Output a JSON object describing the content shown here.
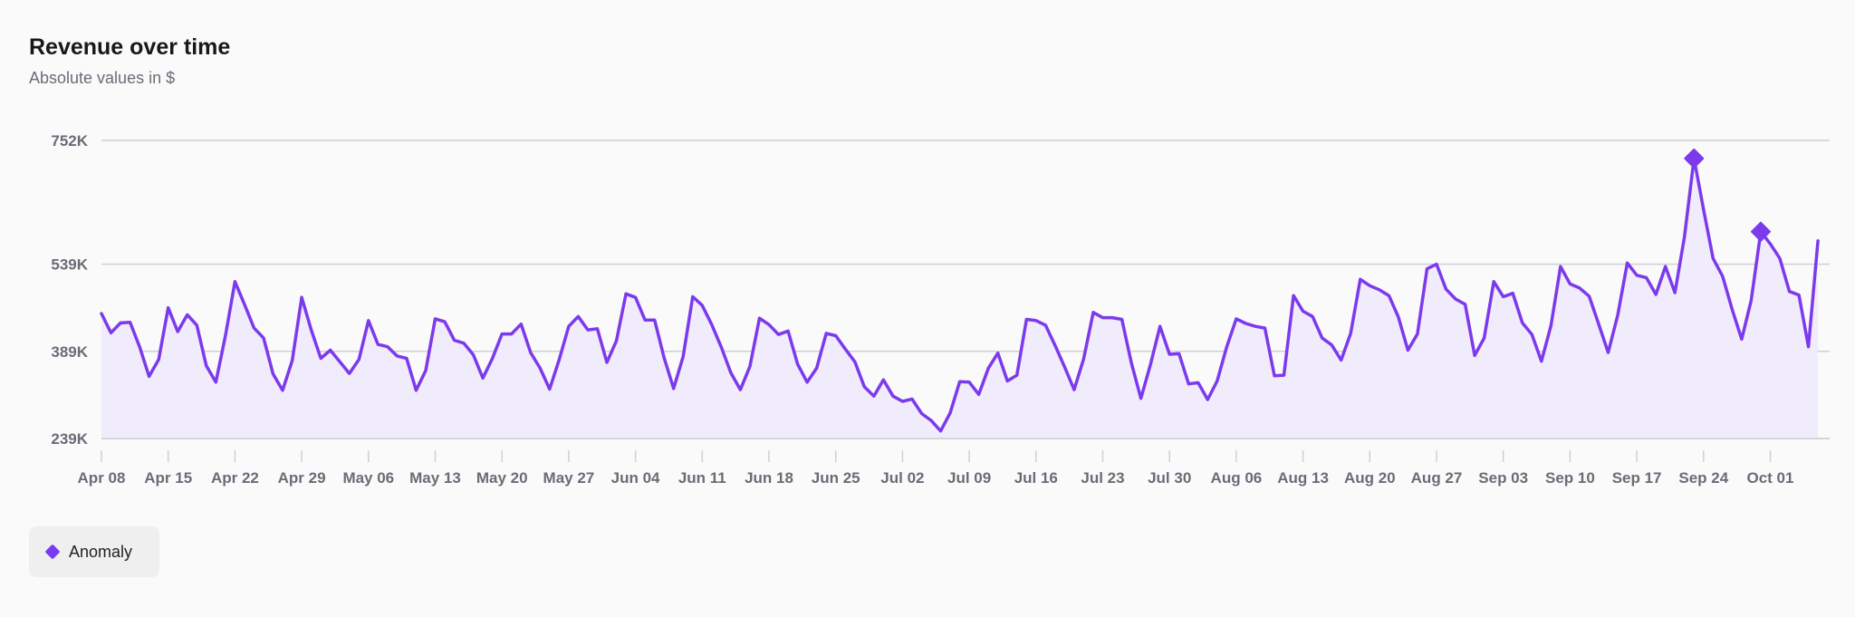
{
  "header": {
    "title": "Revenue over time",
    "subtitle": "Absolute values in $"
  },
  "legend": {
    "items": [
      {
        "label": "Anomaly",
        "icon": "diamond-marker-icon"
      }
    ]
  },
  "colors": {
    "line": "#7c3aed",
    "fill": "#f1ecfb",
    "grid": "#cfcfd6",
    "tick_label": "#6b6b78"
  },
  "chart_data": {
    "type": "line",
    "title": "Revenue over time",
    "subtitle": "Absolute values in $",
    "xlabel": "",
    "ylabel": "",
    "grid": "horizontal",
    "legend_position": "bottom-left",
    "start_date": "2024-04-08",
    "y_ticks": [
      {
        "value": 239000,
        "label": "239K"
      },
      {
        "value": 389000,
        "label": "389K"
      },
      {
        "value": 539000,
        "label": "539K"
      },
      {
        "value": 752000,
        "label": "752K"
      }
    ],
    "ylim": [
      239000,
      752000
    ],
    "x_tick_labels": [
      "Apr 08",
      "Apr 15",
      "Apr 22",
      "Apr 29",
      "May 06",
      "May 13",
      "May 20",
      "May 27",
      "Jun 04",
      "Jun 11",
      "Jun 18",
      "Jun 25",
      "Jul 02",
      "Jul 09",
      "Jul 16",
      "Jul 23",
      "Jul 30",
      "Aug 06",
      "Aug 13",
      "Aug 20",
      "Aug 27",
      "Sep 03",
      "Sep 10",
      "Sep 17",
      "Sep 24",
      "Oct 01"
    ],
    "series": [
      {
        "name": "Revenue",
        "values": [
          454000,
          421000,
          438000,
          439000,
          397000,
          346000,
          375000,
          464000,
          423000,
          452000,
          434000,
          364000,
          336000,
          416000,
          509000,
          470000,
          429000,
          412000,
          350000,
          322000,
          373000,
          482000,
          426000,
          377000,
          391000,
          371000,
          351000,
          375000,
          442000,
          401000,
          397000,
          381000,
          377000,
          322000,
          356000,
          445000,
          440000,
          408000,
          403000,
          383000,
          343000,
          377000,
          419000,
          419000,
          436000,
          387000,
          360000,
          324000,
          375000,
          432000,
          449000,
          426000,
          428000,
          370000,
          407000,
          488000,
          482000,
          443000,
          443000,
          378000,
          325000,
          380000,
          483000,
          468000,
          435000,
          396000,
          352000,
          323000,
          363000,
          446000,
          435000,
          418000,
          424000,
          367000,
          336000,
          360000,
          420000,
          416000,
          393000,
          371000,
          328000,
          312000,
          340000,
          312000,
          303000,
          307000,
          282000,
          270000,
          252000,
          283000,
          337000,
          336000,
          315000,
          360000,
          386000,
          338000,
          348000,
          444000,
          442000,
          434000,
          399000,
          362000,
          323000,
          376000,
          456000,
          447000,
          447000,
          444000,
          369000,
          308000,
          366000,
          432000,
          384000,
          385000,
          333000,
          335000,
          306000,
          338000,
          397000,
          445000,
          437000,
          432000,
          429000,
          347000,
          348000,
          485000,
          458000,
          449000,
          412000,
          400000,
          374000,
          420000,
          513000,
          502000,
          495000,
          485000,
          448000,
          391000,
          419000,
          531000,
          539000,
          496000,
          479000,
          470000,
          382000,
          412000,
          509000,
          483000,
          489000,
          438000,
          418000,
          372000,
          433000,
          535000,
          505000,
          498000,
          484000,
          436000,
          387000,
          451000,
          541000,
          520000,
          516000,
          487000,
          535000,
          490000,
          586000,
          721000,
          633000,
          549000,
          518000,
          461000,
          410000,
          477000,
          595000,
          574000,
          549000,
          492000,
          486000,
          397000,
          579000
        ]
      }
    ],
    "anomalies": [
      {
        "date": "Sep 23",
        "value": 721000
      },
      {
        "date": "Sep 30",
        "value": 595000
      }
    ]
  }
}
